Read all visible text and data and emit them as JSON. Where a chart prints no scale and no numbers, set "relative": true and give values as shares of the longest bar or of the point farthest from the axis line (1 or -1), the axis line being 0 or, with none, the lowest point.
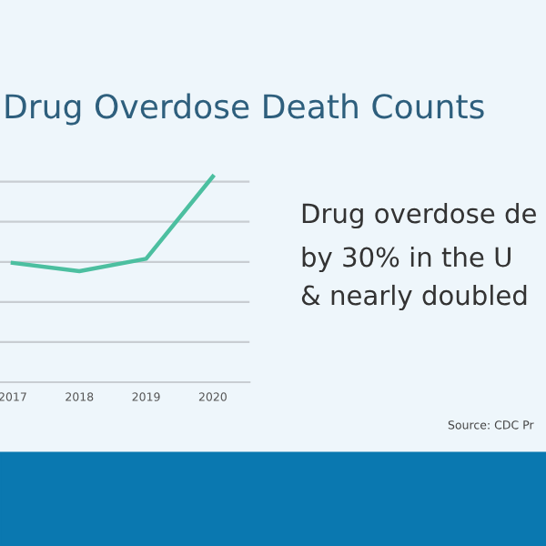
{
  "chart_data": {
    "type": "line",
    "title": "Drug Overdose Death Counts",
    "relative": true,
    "grid": "y",
    "categories": [
      "2017",
      "2018",
      "2019",
      "2020"
    ],
    "series": [
      {
        "color": "#4cbfa0",
        "values": [
          0.58,
          0.54,
          0.6,
          1.0
        ]
      }
    ],
    "annotations": [
      "Drug overdose de",
      "by 30% in the U",
      "& nearly doubled",
      "Source: CDC Pr"
    ]
  }
}
